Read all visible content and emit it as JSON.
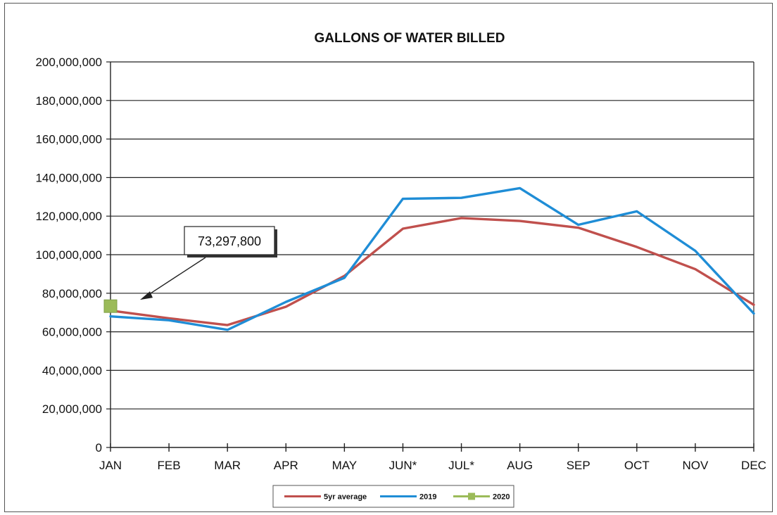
{
  "chart_data": {
    "type": "line",
    "title": "GALLONS OF WATER BILLED",
    "categories": [
      "JAN",
      "FEB",
      "MAR",
      "APR",
      "MAY",
      "JUN*",
      "JUL*",
      "AUG",
      "SEP",
      "OCT",
      "NOV",
      "DEC"
    ],
    "ylim": [
      0,
      200000000
    ],
    "yticks": [
      0,
      20000000,
      40000000,
      60000000,
      80000000,
      100000000,
      120000000,
      140000000,
      160000000,
      180000000,
      200000000
    ],
    "ytick_labels": [
      "0",
      "20,000,000",
      "40,000,000",
      "60,000,000",
      "80,000,000",
      "100,000,000",
      "120,000,000",
      "140,000,000",
      "160,000,000",
      "180,000,000",
      "200,000,000"
    ],
    "grid": true,
    "legend_position": "bottom",
    "series": [
      {
        "name": "5yr average",
        "color": "#c0504d",
        "values": [
          71000000,
          67000000,
          63500000,
          73000000,
          89000000,
          113500000,
          119000000,
          117500000,
          114000000,
          104000000,
          92500000,
          74000000
        ]
      },
      {
        "name": "2019",
        "color": "#1f8dd6",
        "values": [
          68000000,
          66000000,
          61000000,
          75500000,
          88000000,
          129000000,
          129500000,
          134500000,
          115500000,
          122500000,
          102000000,
          69500000
        ]
      },
      {
        "name": "2020",
        "color": "#9bbb59",
        "values": [
          73297800,
          null,
          null,
          null,
          null,
          null,
          null,
          null,
          null,
          null,
          null,
          null
        ]
      }
    ],
    "annotation": {
      "text": "73,297,800",
      "category": "JAN",
      "value": 73297800
    }
  }
}
